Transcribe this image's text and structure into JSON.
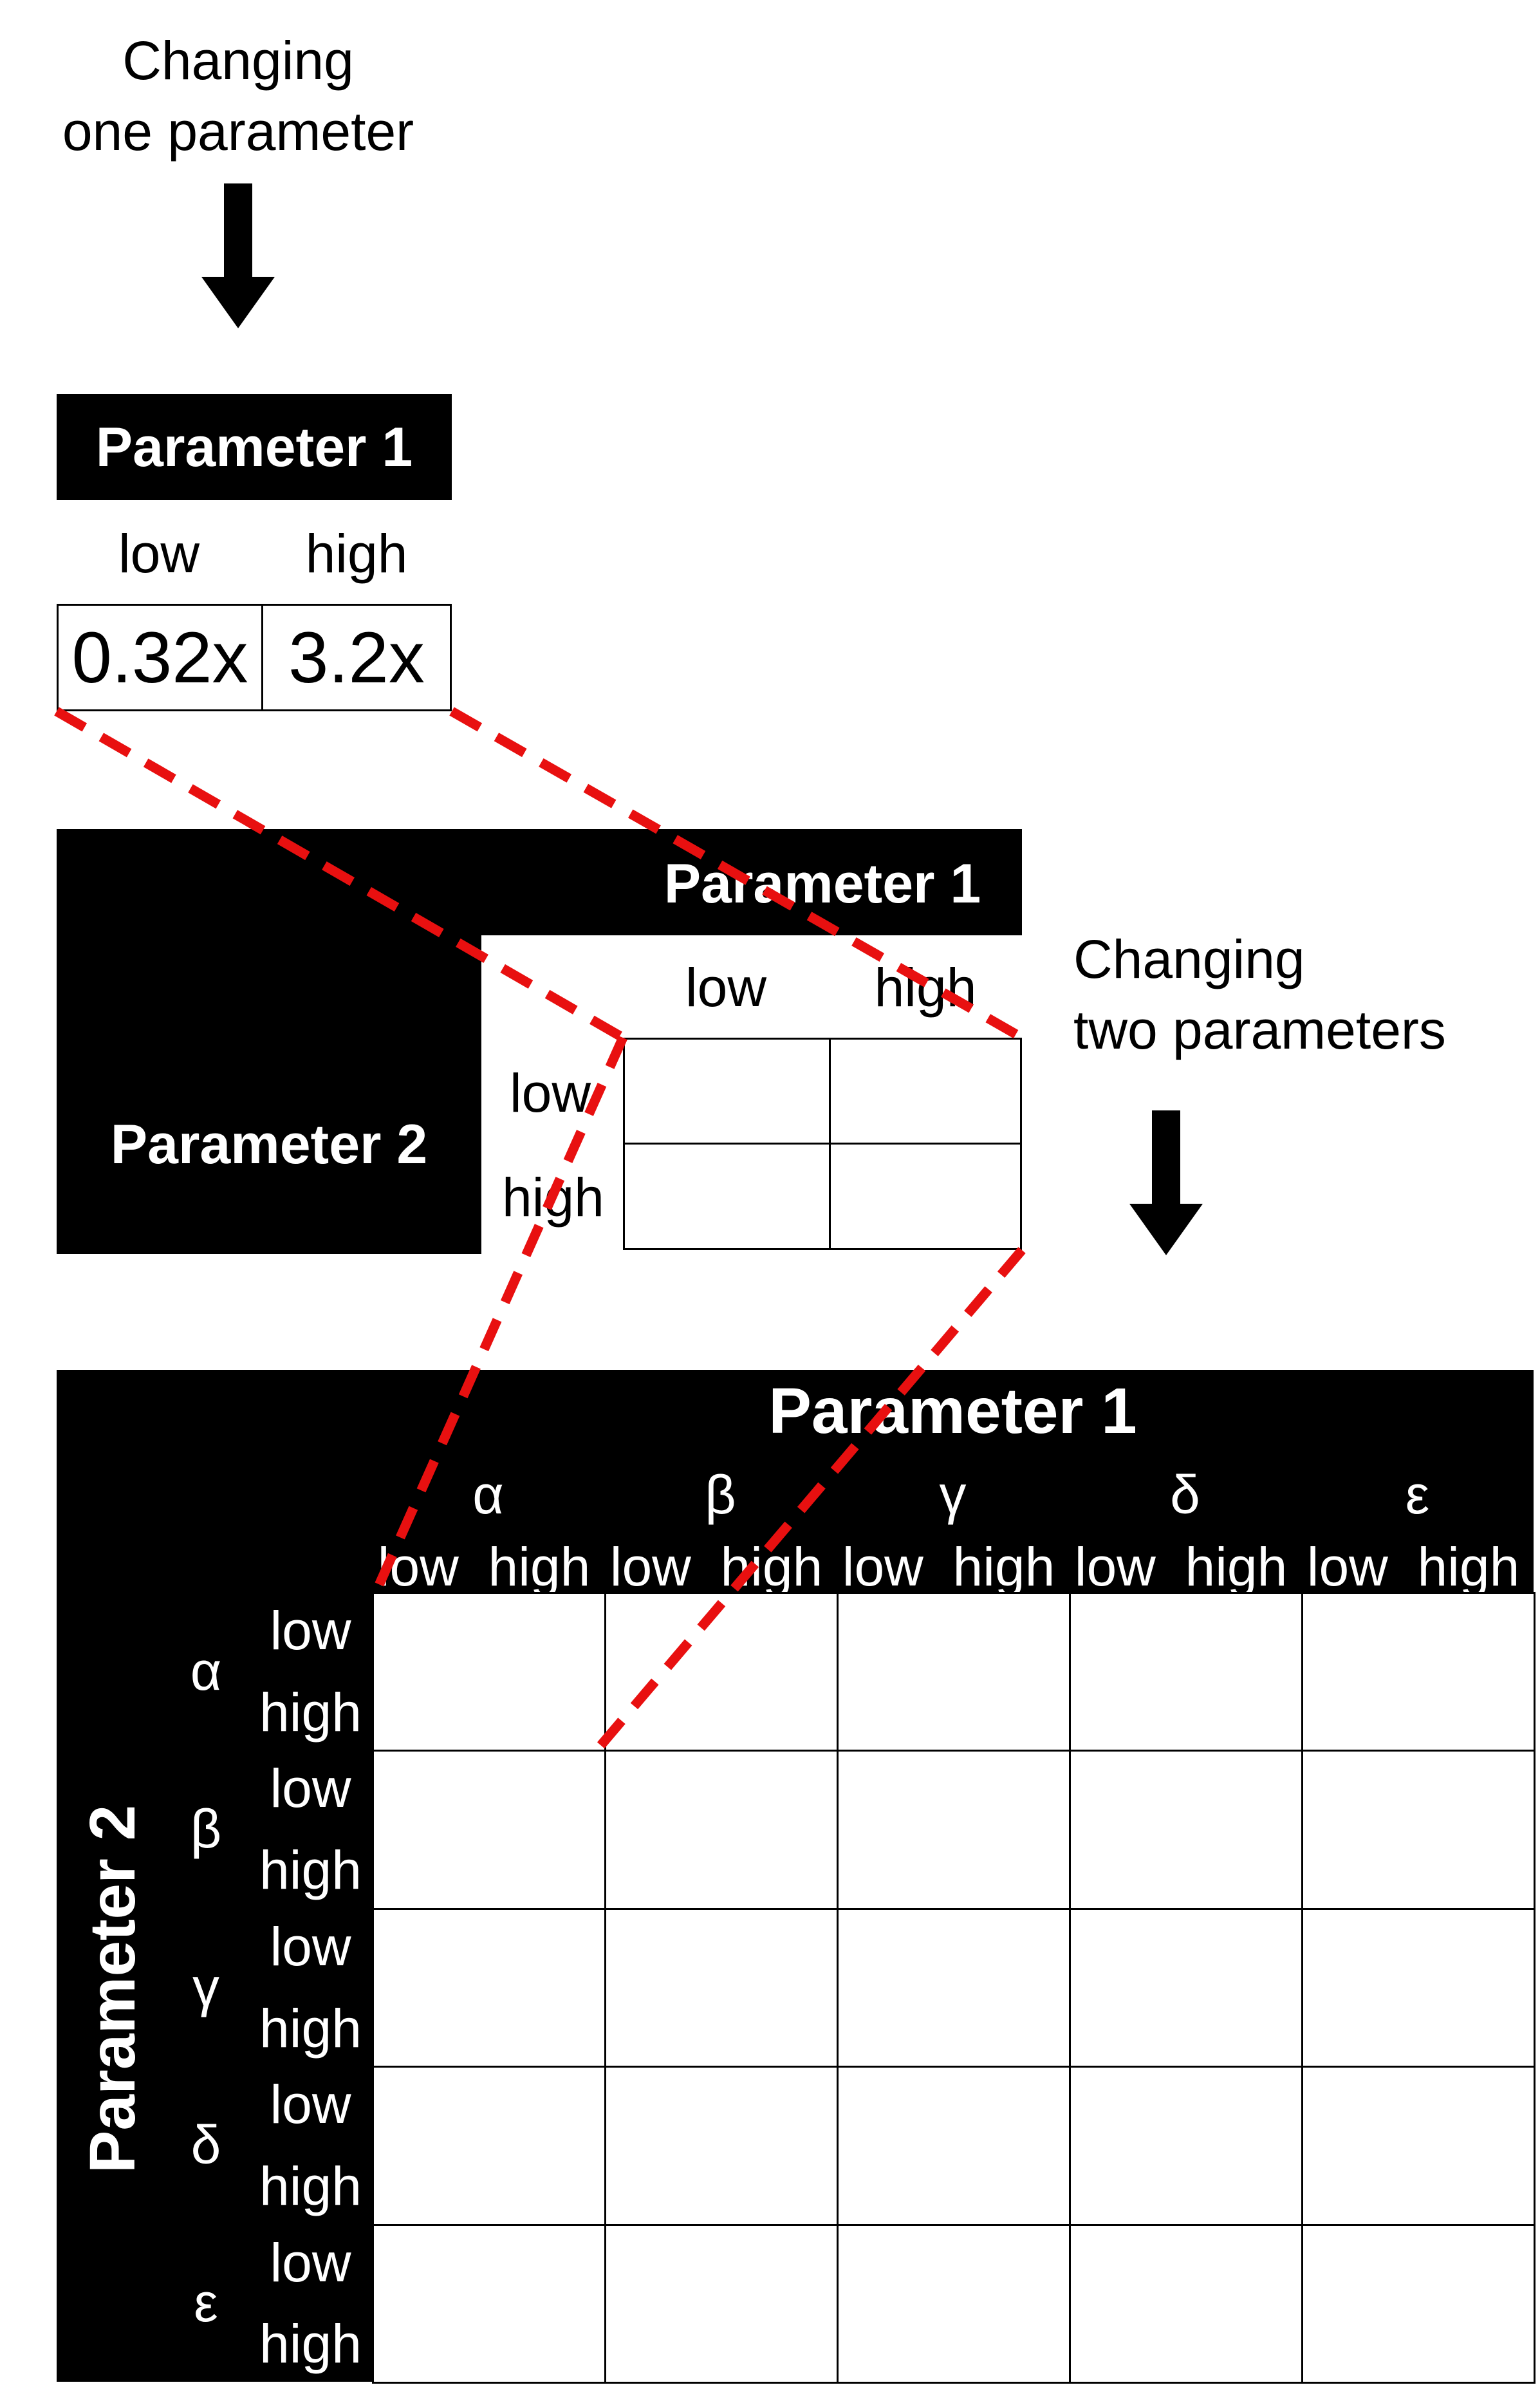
{
  "captions": {
    "one": [
      "Changing",
      "one parameter"
    ],
    "two": [
      "Changing",
      "two parameters"
    ]
  },
  "panel1": {
    "header": "Parameter 1",
    "columns": [
      "low",
      "high"
    ],
    "values": [
      "0.32x",
      "3.2x"
    ]
  },
  "panel2": {
    "header_top": "Parameter 1",
    "header_left": "Parameter 2",
    "columns": [
      "low",
      "high"
    ],
    "rows": [
      "low",
      "high"
    ]
  },
  "panel3": {
    "header_top": "Parameter 1",
    "header_left": "Parameter 2",
    "groups": [
      "α",
      "β",
      "γ",
      "δ",
      "ε"
    ],
    "levels": [
      "low",
      "high"
    ]
  },
  "colors": {
    "connector": "#e81010",
    "header_fill": "#000000"
  }
}
